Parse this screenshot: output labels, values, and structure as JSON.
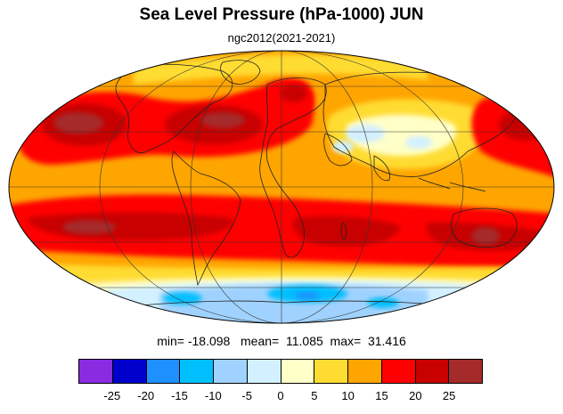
{
  "title": "Sea Level Pressure (hPa-1000) JUN",
  "subtitle": "ngc2012(2021-2021)",
  "stats": {
    "min_label": "min=",
    "min_value": "-18.098",
    "mean_label": "mean=",
    "mean_value": "11.085",
    "max_label": "max=",
    "max_value": "31.416"
  },
  "colorbar": {
    "colors": [
      "#8a2be2",
      "#0000cd",
      "#1e90ff",
      "#00bfff",
      "#a0d2ff",
      "#d2f0ff",
      "#ffffc8",
      "#ffdc32",
      "#ffa500",
      "#ff0000",
      "#c80000",
      "#a52a2a"
    ],
    "labels": [
      "-25",
      "-20",
      "-15",
      "-10",
      "-5",
      "0",
      "5",
      "10",
      "15",
      "20",
      "25"
    ]
  }
}
